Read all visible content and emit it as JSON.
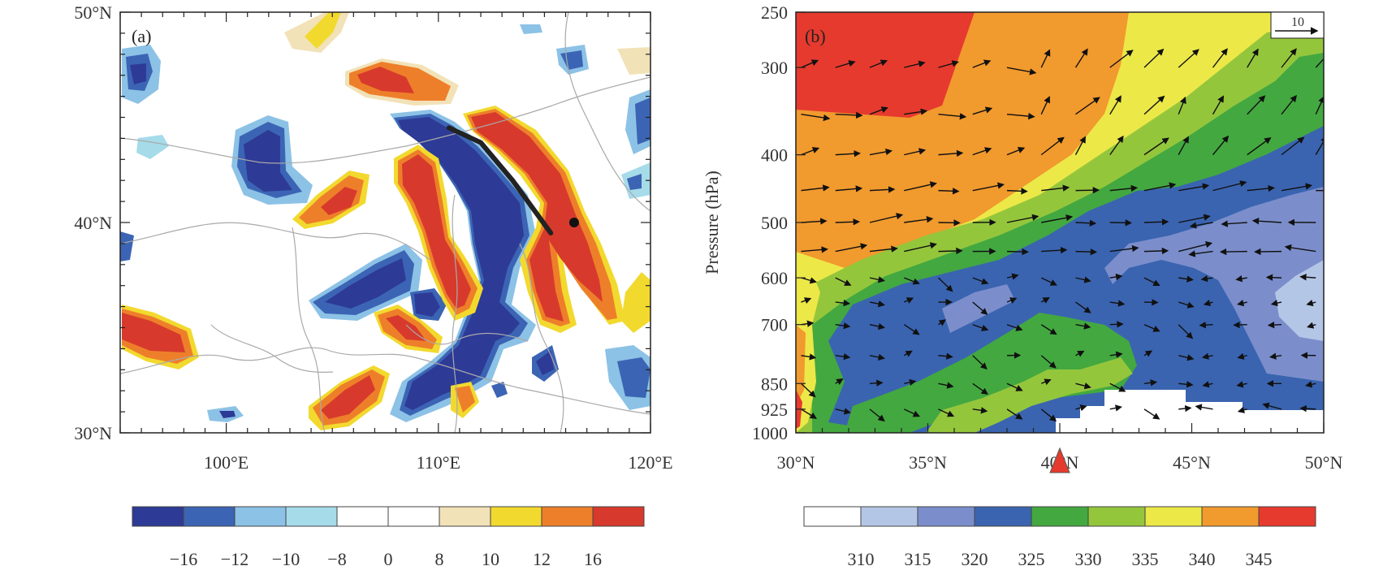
{
  "chart_data": [
    {
      "type": "heatmap",
      "panel_label": "(a)",
      "x_ticks": [
        "100°E",
        "110°E",
        "120°E"
      ],
      "x_tick_values": [
        100,
        110,
        120
      ],
      "y_ticks": [
        "30°N",
        "40°N",
        "50°N"
      ],
      "y_tick_values": [
        30,
        40,
        50
      ],
      "xlim": [
        95,
        120
      ],
      "ylim": [
        30,
        50
      ],
      "colorbar": {
        "colors": [
          "#2d3a96",
          "#3c64b4",
          "#8cc2e6",
          "#a6dbe9",
          "#ffffff",
          "#ffffff",
          "#f2e2b8",
          "#f2d92e",
          "#ee7f2a",
          "#d73a2c"
        ],
        "labels": [
          "−16",
          "−12",
          "−10",
          "−8",
          "0",
          "8",
          "10",
          "12",
          "16"
        ]
      },
      "annotations": {
        "cross_section_line": [
          [
            110.5,
            44.5
          ],
          [
            112,
            43.8
          ],
          [
            113.5,
            42
          ],
          [
            115.3,
            39.5
          ]
        ],
        "point": [
          116.4,
          40
        ]
      }
    },
    {
      "type": "heatmap",
      "panel_label": "(b)",
      "x_ticks": [
        "30°N",
        "35°N",
        "40°N",
        "45°N",
        "50°N"
      ],
      "x_tick_values": [
        30,
        35,
        40,
        45,
        50
      ],
      "y_ticks": [
        "250",
        "300",
        "400",
        "500",
        "600",
        "700",
        "850",
        "925",
        "1000"
      ],
      "y_tick_values": [
        250,
        300,
        400,
        500,
        600,
        700,
        850,
        925,
        1000
      ],
      "xlim": [
        30,
        50
      ],
      "ylim": [
        1000,
        250
      ],
      "ylabel": "Pressure (hPa)",
      "vector_reference": "10",
      "marker_at": 40,
      "colorbar": {
        "colors": [
          "#ffffff",
          "#b4c6e6",
          "#7b8ecb",
          "#3a64b0",
          "#43a840",
          "#94c63c",
          "#ece848",
          "#f19a2e",
          "#e63a2e"
        ],
        "labels": [
          "310",
          "315",
          "320",
          "325",
          "330",
          "335",
          "340",
          "345"
        ]
      }
    }
  ]
}
